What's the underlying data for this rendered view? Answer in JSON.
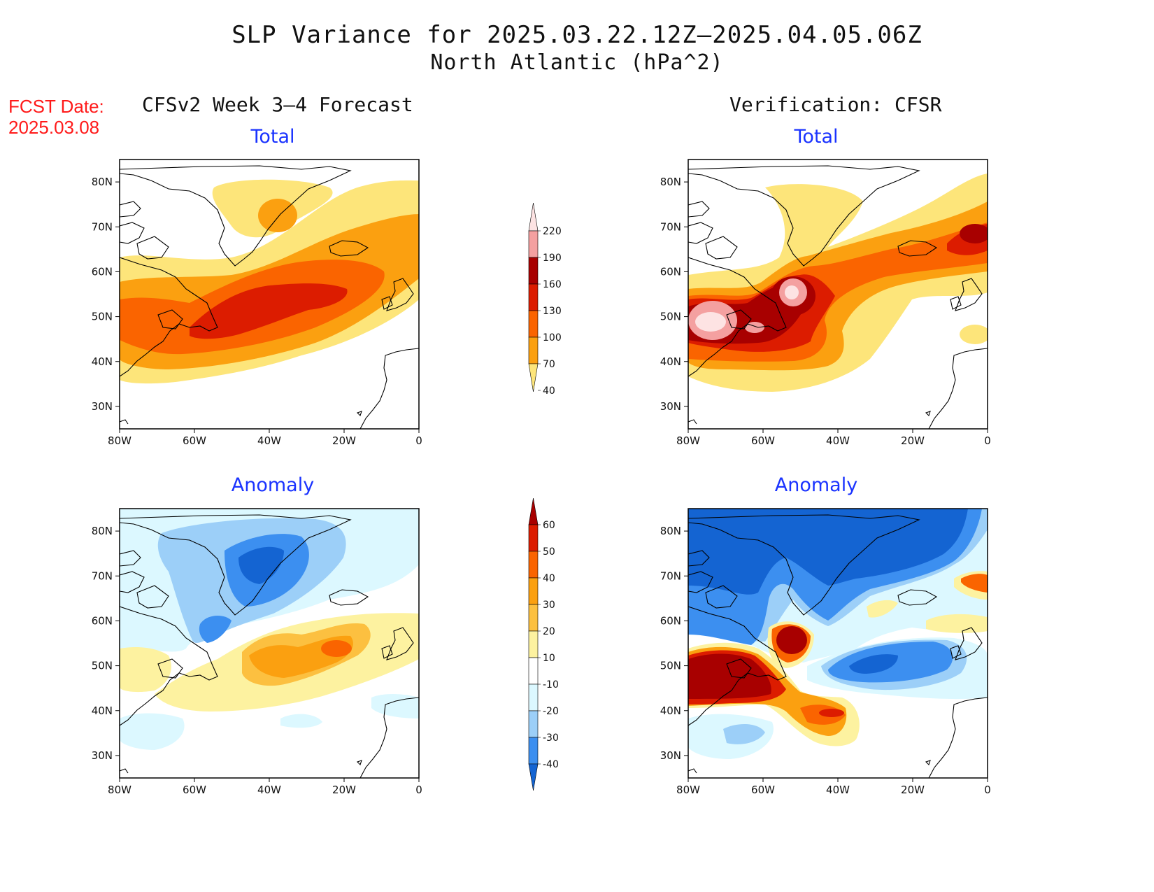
{
  "title": {
    "line1": "SLP Variance for 2025.03.22.12Z–2025.04.05.06Z",
    "line2": "North Atlantic (hPa^2)"
  },
  "fcst_date": {
    "label": "FCST Date:",
    "value": "2025.03.08"
  },
  "columns": {
    "left_header": "CFSv2 Week 3–4 Forecast",
    "right_header": "Verification: CFSR"
  },
  "panels": [
    {
      "id": "fc-total",
      "subtitle": "Total"
    },
    {
      "id": "ver-total",
      "subtitle": "Total"
    },
    {
      "id": "fc-anom",
      "subtitle": "Anomaly"
    },
    {
      "id": "ver-anom",
      "subtitle": "Anomaly"
    }
  ],
  "map_extent": {
    "lon_range": [
      -80,
      0
    ],
    "lat_range": [
      25,
      85
    ],
    "lon_ticks": [
      "80W",
      "60W",
      "40W",
      "20W",
      "0"
    ],
    "lat_ticks": [
      "80N",
      "70N",
      "60N",
      "50N",
      "40N",
      "30N"
    ]
  },
  "total_colorbar": {
    "labels": [
      "220",
      "190",
      "160",
      "130",
      "100",
      "70",
      "40"
    ],
    "colors": [
      "#fde3e3",
      "#f4a0a0",
      "#a80000",
      "#dc1c00",
      "#fa6400",
      "#fba010",
      "#fde57a"
    ]
  },
  "anomaly_colorbar": {
    "labels": [
      "60",
      "50",
      "40",
      "30",
      "20",
      "10",
      "-10",
      "-20",
      "-30",
      "-40"
    ],
    "colors": [
      "#a80000",
      "#dc1c00",
      "#fa6400",
      "#fba010",
      "#fcc040",
      "#fdf2a0",
      "#ffffff",
      "#dcf8ff",
      "#9ccff8",
      "#3c8ff0",
      "#1464d2"
    ]
  }
}
